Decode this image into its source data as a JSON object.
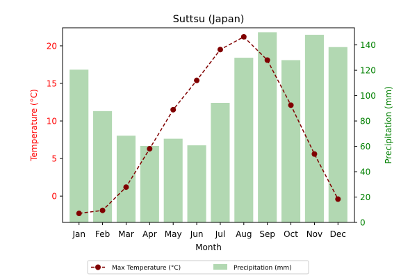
{
  "chart_data": {
    "type": "bar",
    "title": "Suttsu (Japan)",
    "xlabel": "Month",
    "ylabel_left": "Temperature (°C)",
    "ylabel_right": "Precipitation (mm)",
    "categories": [
      "Jan",
      "Feb",
      "Mar",
      "Apr",
      "May",
      "Jun",
      "Jul",
      "Aug",
      "Sep",
      "Oct",
      "Nov",
      "Dec"
    ],
    "ylim_left": [
      -3.5,
      22.4
    ],
    "ylim_right": [
      0,
      153.5
    ],
    "yticks_left": [
      0,
      5,
      10,
      15,
      20
    ],
    "yticks_right": [
      0,
      20,
      40,
      60,
      80,
      100,
      120,
      140
    ],
    "grid": false,
    "legend_placement": "bottom-center",
    "series": [
      {
        "name": "Max Temperature (°C)",
        "kind": "line",
        "axis": "left",
        "color": "#800000",
        "linestyle": "dashed",
        "marker": "circle",
        "values": [
          -2.3,
          -1.9,
          1.2,
          6.3,
          11.5,
          15.4,
          19.5,
          21.2,
          18.1,
          12.1,
          5.6,
          -0.4
        ]
      },
      {
        "name": "Precipitation (mm)",
        "kind": "bar",
        "axis": "right",
        "color": "#b2d8b2",
        "values": [
          120.5,
          87.8,
          68.4,
          60.3,
          66.0,
          60.8,
          94.3,
          129.9,
          150.0,
          128.0,
          148.0,
          138.3
        ]
      }
    ],
    "colors": {
      "left_axis": "#ff0000",
      "right_axis": "#008000"
    }
  }
}
